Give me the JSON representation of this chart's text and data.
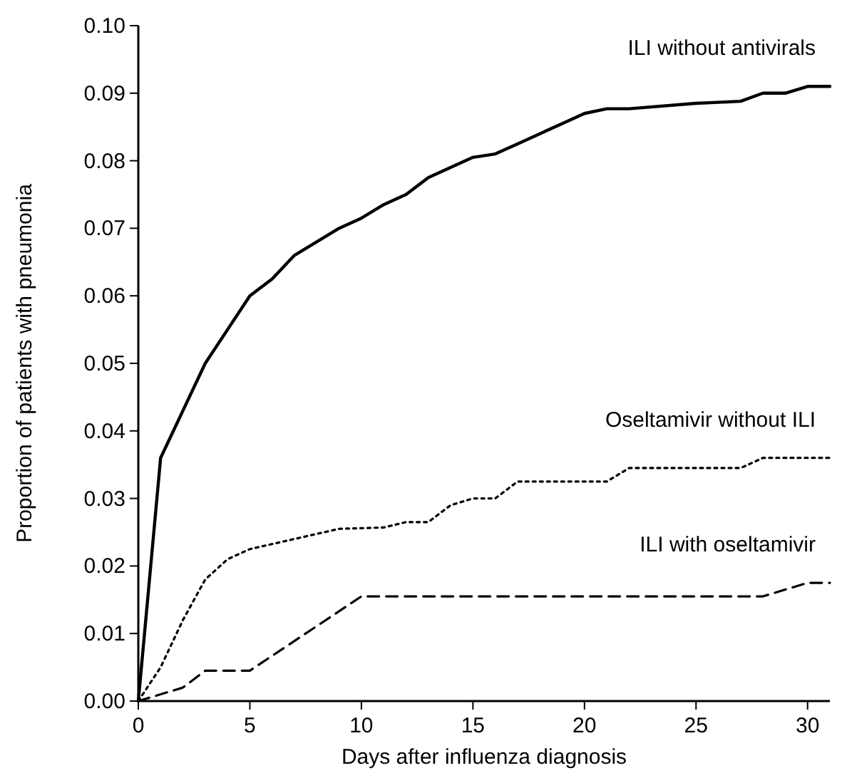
{
  "chart_data": {
    "type": "line",
    "xlabel": "Days after influenza diagnosis",
    "ylabel": "Proportion of patients with pneumonia",
    "xlim": [
      0,
      31
    ],
    "xticks": [
      0,
      5,
      10,
      15,
      20,
      25,
      30
    ],
    "ylim": [
      0,
      0.1
    ],
    "yticks": [
      {
        "value": 0,
        "label": "0.00"
      },
      {
        "value": 0.01,
        "label": "0.01"
      },
      {
        "value": 0.02,
        "label": "0.02"
      },
      {
        "value": 0.03,
        "label": "0.03"
      },
      {
        "value": 0.04,
        "label": "0.04"
      },
      {
        "value": 0.05,
        "label": "0.05"
      },
      {
        "value": 0.06,
        "label": "0.06"
      },
      {
        "value": 0.07,
        "label": "0.07"
      },
      {
        "value": 0.08,
        "label": "0.08"
      },
      {
        "value": 0.09,
        "label": "0.09"
      },
      {
        "value": 0.1,
        "label": "0.10"
      }
    ],
    "grid": false,
    "marker": "none",
    "series": [
      {
        "name": "ILI without antivirals",
        "color": "#000000",
        "line_style": "solid",
        "x": [
          0,
          1,
          2,
          3,
          4,
          5,
          6,
          7,
          8,
          9,
          10,
          11,
          12,
          13,
          14,
          15,
          16,
          17,
          18,
          19,
          20,
          21,
          22,
          25,
          27,
          28,
          29,
          30,
          31
        ],
        "values": [
          0,
          0.036,
          0.043,
          0.05,
          0.055,
          0.06,
          0.0625,
          0.066,
          0.068,
          0.07,
          0.0715,
          0.0735,
          0.075,
          0.0775,
          0.079,
          0.0805,
          0.081,
          0.0825,
          0.084,
          0.0855,
          0.087,
          0.0877,
          0.0877,
          0.0885,
          0.0888,
          0.09,
          0.09,
          0.091,
          0.091
        ]
      },
      {
        "name": "Oseltamivir without ILI",
        "color": "#000000",
        "line_style": "dotted",
        "x": [
          0,
          1,
          2,
          3,
          4,
          5,
          7,
          9,
          11,
          12,
          13,
          14,
          15,
          16,
          17,
          21,
          22,
          27,
          28,
          31
        ],
        "values": [
          0,
          0.005,
          0.012,
          0.018,
          0.021,
          0.0225,
          0.024,
          0.0255,
          0.0257,
          0.0265,
          0.0265,
          0.029,
          0.03,
          0.03,
          0.0325,
          0.0325,
          0.0345,
          0.0345,
          0.036,
          0.036
        ]
      },
      {
        "name": "ILI with oseltamivir",
        "color": "#000000",
        "line_style": "dashed",
        "x": [
          0,
          2,
          3,
          5,
          10,
          28,
          30,
          31
        ],
        "values": [
          0,
          0.002,
          0.0045,
          0.0045,
          0.0155,
          0.0155,
          0.0175,
          0.0175
        ]
      }
    ]
  }
}
